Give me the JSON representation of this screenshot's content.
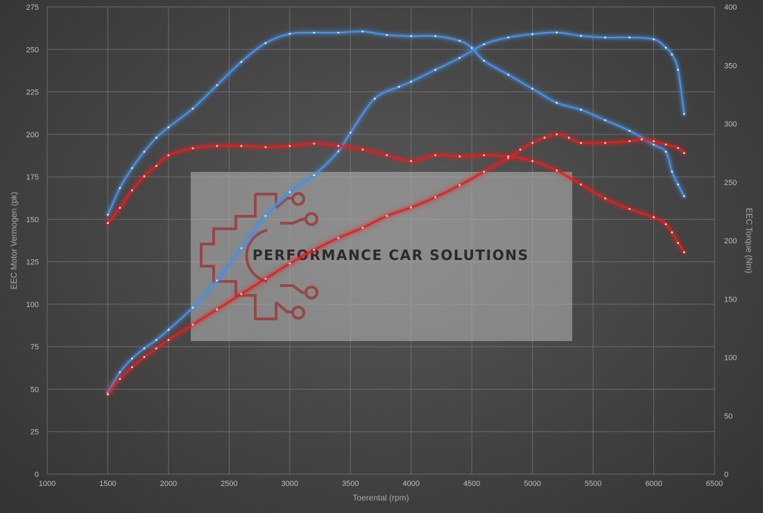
{
  "chart_data": {
    "type": "line",
    "xlabel": "Toerental (rpm)",
    "ylabel_left": "EEC Motor Vermogen (pk)",
    "ylabel_right": "EEC Torque (Nm)",
    "xlim": [
      1000,
      6500
    ],
    "ylim_left": [
      0,
      275
    ],
    "ylim_right": [
      0,
      400
    ],
    "x_ticks": [
      1000,
      1500,
      2000,
      2500,
      3000,
      3500,
      4000,
      4500,
      5000,
      5500,
      6000,
      6500
    ],
    "y_left_ticks": [
      0,
      25,
      50,
      75,
      100,
      125,
      150,
      175,
      200,
      225,
      250,
      275
    ],
    "y_right_ticks": [
      0,
      50,
      100,
      150,
      200,
      250,
      300,
      350,
      400
    ],
    "grid": true,
    "legend": "none",
    "series": [
      {
        "axis": "left",
        "color": "#4a90e2",
        "x": [
          1500,
          1600,
          1700,
          1800,
          1900,
          2000,
          2200,
          2400,
          2600,
          2800,
          3000,
          3200,
          3400,
          3500,
          3700,
          3900,
          4000,
          4200,
          4400,
          4600,
          4800,
          5000,
          5200,
          5400,
          5600,
          5800,
          6000,
          6100,
          6150,
          6200,
          6250
        ],
        "y": [
          48,
          60,
          68,
          74,
          79,
          85,
          98,
          114,
          133,
          152,
          166,
          176,
          190,
          201,
          221,
          228,
          231,
          238,
          245,
          253,
          257,
          259,
          260,
          258,
          257,
          257,
          256,
          251,
          247,
          238,
          212
        ]
      },
      {
        "axis": "right",
        "color": "#4a90e2",
        "x": [
          1500,
          1600,
          1700,
          1800,
          1900,
          2000,
          2200,
          2400,
          2600,
          2800,
          3000,
          3200,
          3400,
          3600,
          3800,
          4000,
          4200,
          4400,
          4500,
          4600,
          4800,
          5000,
          5200,
          5400,
          5600,
          5800,
          6000,
          6100,
          6150,
          6200,
          6250
        ],
        "y": [
          222,
          245,
          262,
          276,
          288,
          297,
          313,
          333,
          353,
          369,
          377,
          378,
          378,
          379,
          376,
          375,
          375,
          371,
          365,
          354,
          342,
          330,
          318,
          312,
          303,
          294,
          282,
          276,
          259,
          248,
          238
        ]
      },
      {
        "axis": "left",
        "color": "#e02020",
        "x": [
          1500,
          1600,
          1700,
          1800,
          1900,
          2000,
          2200,
          2400,
          2600,
          2800,
          3000,
          3200,
          3400,
          3600,
          3800,
          4000,
          4200,
          4400,
          4600,
          4800,
          4900,
          5000,
          5100,
          5200,
          5300,
          5400,
          5600,
          5800,
          5900,
          6000,
          6100,
          6200,
          6250
        ],
        "y": [
          47,
          56,
          63,
          69,
          74,
          79,
          88,
          97,
          106,
          115,
          124,
          132,
          139,
          145,
          152,
          157,
          163,
          170,
          178,
          186,
          191,
          195,
          198,
          200,
          198,
          195,
          195,
          196,
          197,
          196,
          194,
          192,
          189
        ]
      },
      {
        "axis": "right",
        "color": "#e02020",
        "x": [
          1500,
          1600,
          1700,
          1800,
          1900,
          2000,
          2200,
          2400,
          2600,
          2800,
          3000,
          3200,
          3400,
          3600,
          3800,
          4000,
          4200,
          4400,
          4600,
          4800,
          5000,
          5200,
          5400,
          5600,
          5800,
          6000,
          6100,
          6150,
          6200,
          6250
        ],
        "y": [
          215,
          228,
          243,
          255,
          264,
          273,
          279,
          281,
          281,
          280,
          281,
          283,
          281,
          278,
          273,
          268,
          273,
          272,
          273,
          272,
          268,
          260,
          248,
          236,
          227,
          220,
          214,
          207,
          198,
          190
        ]
      }
    ]
  },
  "watermark": {
    "text": "PERFORMANCE CAR SOLUTIONS"
  }
}
